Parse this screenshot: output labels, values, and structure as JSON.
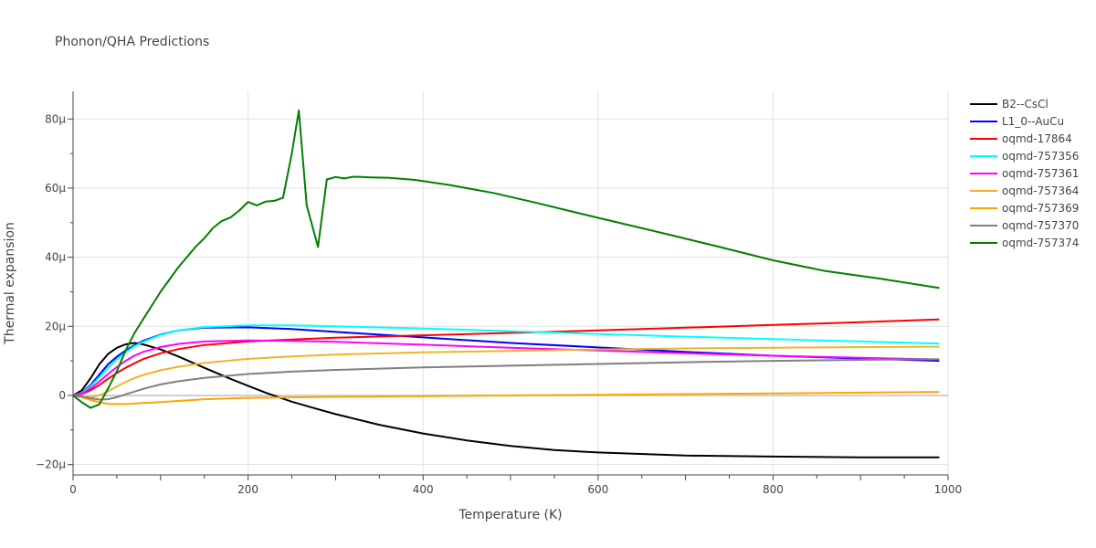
{
  "chart_data": {
    "type": "line",
    "title": "Phonon/QHA Predictions",
    "xlabel": "Temperature (K)",
    "ylabel": "Thermal expansion",
    "xlim": [
      0,
      1000
    ],
    "ylim": [
      -23,
      88
    ],
    "x_ticks": [
      0,
      200,
      400,
      600,
      800,
      1000
    ],
    "x_tick_labels": [
      "0",
      "200",
      "400",
      "600",
      "800",
      "1000"
    ],
    "y_ticks": [
      -20,
      0,
      20,
      40,
      60,
      80
    ],
    "y_tick_labels": [
      "−20μ",
      "0",
      "20μ",
      "40μ",
      "60μ",
      "80μ"
    ],
    "y_unit_scale": "1e-6",
    "grid": true,
    "legend_position": "right",
    "series": [
      {
        "name": "B2--CsCl",
        "color": "#000000",
        "x": [
          0,
          10,
          20,
          30,
          40,
          50,
          60,
          70,
          80,
          100,
          120,
          150,
          180,
          200,
          220,
          250,
          280,
          300,
          350,
          400,
          450,
          500,
          550,
          600,
          700,
          800,
          900,
          990
        ],
        "y": [
          0,
          1.5,
          5,
          9,
          12,
          13.8,
          14.8,
          15.2,
          14.8,
          13.3,
          11.3,
          8,
          4.8,
          2.8,
          0.8,
          -1.8,
          -4,
          -5.4,
          -8.5,
          -11,
          -13,
          -14.6,
          -15.8,
          -16.5,
          -17.4,
          -17.7,
          -17.9,
          -17.9
        ]
      },
      {
        "name": "L1_0--AuCu",
        "color": "#0000ff",
        "x": [
          0,
          10,
          20,
          30,
          40,
          50,
          60,
          70,
          80,
          100,
          120,
          150,
          200,
          250,
          300,
          400,
          500,
          600,
          700,
          800,
          900,
          990
        ],
        "y": [
          0,
          0.8,
          3,
          6,
          9,
          11.2,
          13,
          14.5,
          15.8,
          17.6,
          18.8,
          19.6,
          19.7,
          19.2,
          18.4,
          16.8,
          15.2,
          13.9,
          12.6,
          11.5,
          10.7,
          10.0
        ]
      },
      {
        "name": "oqmd-17864",
        "color": "#ff0000",
        "x": [
          0,
          10,
          20,
          30,
          40,
          50,
          60,
          70,
          80,
          100,
          120,
          150,
          200,
          250,
          300,
          400,
          500,
          600,
          700,
          800,
          900,
          990
        ],
        "y": [
          0,
          0.4,
          1.5,
          3,
          4.8,
          6.5,
          8,
          9.3,
          10.5,
          12.2,
          13.4,
          14.6,
          15.6,
          16.2,
          16.7,
          17.4,
          18.1,
          18.8,
          19.6,
          20.4,
          21.2,
          22.0
        ]
      },
      {
        "name": "oqmd-757356",
        "color": "#00ffff",
        "x": [
          0,
          10,
          20,
          30,
          40,
          50,
          60,
          70,
          80,
          100,
          120,
          150,
          200,
          250,
          300,
          400,
          500,
          600,
          700,
          800,
          900,
          990
        ],
        "y": [
          0,
          0.7,
          2.6,
          5.3,
          8,
          10.5,
          12.5,
          14.2,
          15.5,
          17.5,
          18.8,
          19.8,
          20.3,
          20.3,
          20,
          19.4,
          18.6,
          17.8,
          17,
          16.3,
          15.6,
          15
        ]
      },
      {
        "name": "oqmd-757361",
        "color": "#ff00ff",
        "x": [
          0,
          10,
          20,
          30,
          40,
          50,
          60,
          70,
          80,
          100,
          120,
          150,
          200,
          250,
          300,
          400,
          500,
          600,
          700,
          800,
          900,
          990
        ],
        "y": [
          0,
          0.5,
          2,
          4,
          6.2,
          8.2,
          10,
          11.5,
          12.6,
          14,
          14.9,
          15.6,
          15.9,
          15.8,
          15.5,
          14.7,
          13.8,
          13,
          12.2,
          11.5,
          10.9,
          10.4
        ]
      },
      {
        "name": "oqmd-757364",
        "color": "#f0b428",
        "x": [
          0,
          10,
          20,
          30,
          40,
          50,
          60,
          70,
          80,
          100,
          120,
          150,
          200,
          250,
          300,
          400,
          500,
          600,
          700,
          800,
          900,
          990
        ],
        "y": [
          0,
          -0.3,
          -0.6,
          0,
          1.2,
          2.6,
          3.9,
          5,
          5.9,
          7.3,
          8.3,
          9.4,
          10.6,
          11.3,
          11.8,
          12.5,
          12.9,
          13.3,
          13.6,
          13.8,
          14,
          14.1
        ]
      },
      {
        "name": "oqmd-757369",
        "color": "#ffa500",
        "x": [
          0,
          10,
          20,
          30,
          40,
          50,
          60,
          80,
          100,
          150,
          200,
          300,
          400,
          500,
          600,
          700,
          800,
          900,
          990
        ],
        "y": [
          0,
          -0.5,
          -1.3,
          -2,
          -2.4,
          -2.5,
          -2.5,
          -2.2,
          -1.9,
          -1.1,
          -0.7,
          -0.4,
          -0.2,
          0,
          0.2,
          0.4,
          0.6,
          0.8,
          1.0
        ]
      },
      {
        "name": "oqmd-757370",
        "color": "#808080",
        "x": [
          0,
          10,
          20,
          30,
          40,
          50,
          60,
          70,
          80,
          100,
          120,
          150,
          200,
          250,
          300,
          400,
          500,
          600,
          700,
          800,
          900,
          990
        ],
        "y": [
          0,
          -0.3,
          -0.8,
          -1.2,
          -1.1,
          -0.5,
          0.3,
          1.1,
          1.9,
          3.2,
          4.1,
          5.1,
          6.2,
          6.9,
          7.4,
          8.1,
          8.6,
          9.1,
          9.6,
          10,
          10.3,
          10.5
        ]
      },
      {
        "name": "oqmd-757374",
        "color": "#008000",
        "x": [
          0,
          10,
          20,
          30,
          40,
          50,
          60,
          70,
          80,
          100,
          120,
          140,
          150,
          160,
          170,
          180,
          190,
          200,
          210,
          220,
          230,
          240,
          250,
          258,
          267,
          280,
          290,
          300,
          310,
          320,
          330,
          340,
          360,
          390,
          430,
          480,
          530,
          580,
          620,
          680,
          740,
          800,
          860,
          920,
          990
        ],
        "y": [
          0,
          -2,
          -3.6,
          -2.6,
          2,
          7,
          13,
          18,
          22,
          30,
          37,
          43,
          45.5,
          48.5,
          50.5,
          51.5,
          53.5,
          56,
          55,
          56.1,
          56.3,
          57.2,
          70,
          82.5,
          55,
          43,
          62.5,
          63.2,
          62.8,
          63.3,
          63.2,
          63.1,
          63,
          62.4,
          60.9,
          58.6,
          55.7,
          52.6,
          50.2,
          46.6,
          42.9,
          39.1,
          36,
          33.9,
          31.1
        ]
      }
    ]
  }
}
